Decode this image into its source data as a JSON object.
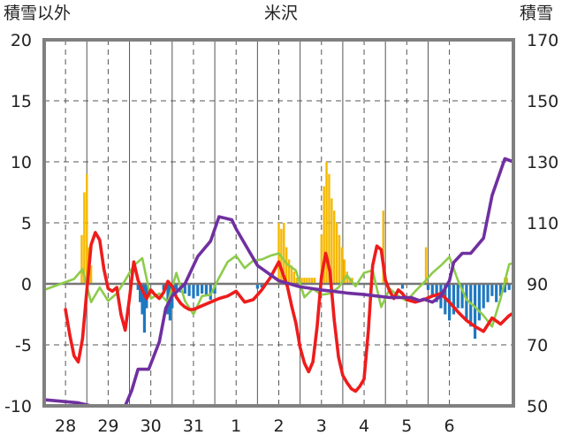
{
  "chart_data": {
    "type": "line",
    "title": "米沢",
    "left_axis_label": "積雪以外",
    "right_axis_label": "積雪",
    "left_ylim": [
      -10,
      20
    ],
    "left_ticks": [
      "20",
      "15",
      "10",
      "5",
      "0",
      "-5",
      "-10"
    ],
    "left_tick_values": [
      20,
      15,
      10,
      5,
      0,
      -5,
      -10
    ],
    "right_ylim": [
      50,
      170
    ],
    "right_ticks": [
      "170",
      "150",
      "130",
      "110",
      "90",
      "70",
      "50"
    ],
    "right_tick_values": [
      170,
      150,
      130,
      110,
      90,
      70,
      50
    ],
    "categories": [
      "28",
      "29",
      "30",
      "31",
      "1",
      "2",
      "3",
      "4",
      "5",
      "6"
    ],
    "xlim": [
      -0.5,
      10.5
    ],
    "grid": true,
    "colors": {
      "precip": "#f5b800",
      "snow_change": "#1f78c0",
      "temperature": "#ee1c1c",
      "wind": "#8dcc4a",
      "snow_depth": "#7030a0",
      "frame": "#808080",
      "grid": "#555555"
    },
    "series": [
      {
        "key": "temperature",
        "axis": "left",
        "x": [
          0,
          0.1,
          0.2,
          0.3,
          0.4,
          0.5,
          0.6,
          0.7,
          0.8,
          0.9,
          1.0,
          1.1,
          1.2,
          1.3,
          1.4,
          1.5,
          1.6,
          1.7,
          1.8,
          1.9,
          2.0,
          2.1,
          2.2,
          2.3,
          2.4,
          2.5,
          2.6,
          2.7,
          2.8,
          2.9,
          3.0,
          3.2,
          3.4,
          3.6,
          3.8,
          4.0,
          4.2,
          4.4,
          4.6,
          4.8,
          5.0,
          5.1,
          5.2,
          5.3,
          5.4,
          5.5,
          5.6,
          5.7,
          5.8,
          5.9,
          6.0,
          6.1,
          6.2,
          6.3,
          6.4,
          6.5,
          6.6,
          6.7,
          6.8,
          6.9,
          7.0,
          7.1,
          7.2,
          7.3,
          7.4,
          7.5,
          7.6,
          7.7,
          7.8,
          7.9,
          8.0,
          8.2,
          8.4,
          8.6,
          8.8,
          9.0,
          9.2,
          9.4,
          9.6,
          9.8,
          10.0,
          10.2,
          10.4,
          10.5
        ],
        "y": [
          -2.1,
          -4.2,
          -5.9,
          -6.4,
          -4.5,
          -0.5,
          3.2,
          4.2,
          3.6,
          1.2,
          -0.4,
          -0.6,
          -0.3,
          -2.5,
          -3.8,
          -1.2,
          1.8,
          0.3,
          -0.5,
          -1.2,
          -0.5,
          -0.9,
          -1.2,
          -0.7,
          0.2,
          -0.2,
          -1.1,
          -1.6,
          -1.9,
          -2.1,
          -2.1,
          -1.8,
          -1.5,
          -1.2,
          -1.0,
          -0.6,
          -1.5,
          -1.3,
          -0.5,
          0.5,
          1.8,
          0.8,
          -0.2,
          -1.8,
          -3.2,
          -5.2,
          -6.5,
          -7.2,
          -6.4,
          -3.5,
          0.6,
          2.5,
          1.0,
          -3.0,
          -6.0,
          -7.5,
          -8.1,
          -8.6,
          -8.8,
          -8.4,
          -7.8,
          -3.8,
          1.5,
          3.1,
          2.8,
          0.3,
          -0.6,
          -1.2,
          -0.5,
          -0.8,
          -1.3,
          -1.5,
          -1.3,
          -1.0,
          -0.8,
          -1.5,
          -2.3,
          -3.0,
          -3.5,
          -3.9,
          -2.8,
          -3.3,
          -2.6,
          -2.4
        ]
      },
      {
        "key": "wind",
        "axis": "left",
        "x": [
          -0.5,
          0.2,
          0.4,
          0.6,
          0.8,
          1.0,
          1.2,
          1.4,
          1.6,
          1.8,
          2.0,
          2.2,
          2.4,
          2.6,
          2.8,
          3.0,
          3.2,
          3.4,
          3.6,
          3.8,
          4.0,
          4.2,
          4.4,
          4.6,
          4.8,
          5.0,
          5.2,
          5.4,
          5.6,
          5.8,
          6.0,
          6.2,
          6.4,
          6.6,
          6.8,
          7.0,
          7.2,
          7.4,
          7.6,
          7.8,
          8.0,
          8.2,
          8.4,
          8.6,
          8.8,
          9.0,
          9.2,
          9.4,
          9.6,
          9.8,
          10.0,
          10.2,
          10.4,
          10.5
        ],
        "y": [
          -0.5,
          0.4,
          1.2,
          -1.5,
          -0.3,
          -1.4,
          -0.8,
          0.3,
          1.5,
          2.1,
          -1.2,
          -0.8,
          -1.5,
          0.9,
          -1.4,
          -2.5,
          -1.0,
          -0.9,
          0.5,
          1.8,
          2.3,
          1.3,
          1.9,
          2.0,
          2.3,
          2.5,
          1.6,
          1.1,
          -1.1,
          -0.4,
          -0.9,
          -0.8,
          -0.3,
          0.7,
          -0.2,
          0.9,
          1.1,
          -1.9,
          -0.4,
          -1.0,
          -1.4,
          -0.6,
          0.1,
          0.9,
          1.5,
          2.2,
          0.3,
          -1.3,
          -1.9,
          -2.6,
          -3.5,
          -1.2,
          1.6,
          1.7
        ]
      },
      {
        "key": "snow_depth",
        "axis": "right",
        "x": [
          -0.5,
          0.3,
          0.6,
          1.0,
          1.4,
          1.55,
          1.7,
          1.95,
          2.2,
          2.35,
          2.5,
          2.8,
          3.1,
          3.4,
          3.6,
          3.9,
          4.0,
          4.25,
          4.5,
          5.0,
          5.5,
          6.0,
          6.3,
          6.6,
          7.0,
          7.3,
          7.6,
          7.9,
          8.1,
          8.3,
          8.4,
          8.6,
          8.8,
          9.0,
          9.1,
          9.3,
          9.5,
          9.8,
          10.0,
          10.3,
          10.5
        ],
        "y": [
          52,
          51,
          50,
          50,
          50,
          55,
          62,
          62,
          71,
          82,
          86,
          90,
          99,
          104,
          112,
          111,
          108,
          102,
          96,
          91,
          89,
          88,
          87.5,
          87,
          86.5,
          86,
          85.5,
          85.5,
          85.5,
          84.5,
          85,
          84,
          86,
          91,
          97,
          100,
          100,
          105,
          119,
          131,
          130
        ]
      }
    ],
    "bar_series": [
      {
        "key": "precip",
        "axis": "left",
        "x": [
          0.38,
          0.44,
          0.5,
          0.55,
          0.6,
          5.0,
          5.06,
          5.12,
          5.18,
          5.24,
          5.3,
          5.36,
          5.42,
          5.48,
          5.54,
          5.6,
          5.66,
          5.72,
          5.78,
          5.84,
          6.0,
          6.06,
          6.12,
          6.18,
          6.24,
          6.3,
          6.36,
          6.42,
          6.48,
          6.54,
          6.6,
          6.66,
          6.72,
          7.45,
          8.45,
          10.3,
          10.35
        ],
        "values": [
          4.0,
          7.5,
          9.0,
          3.0,
          1.5,
          5.0,
          4.5,
          5.0,
          3.0,
          2.0,
          1.5,
          1.0,
          0.5,
          0.5,
          0.5,
          0.5,
          0.5,
          0.5,
          0.5,
          0.5,
          4.0,
          8.0,
          10.0,
          9.0,
          7.0,
          6.0,
          5.0,
          4.0,
          3.0,
          2.0,
          1.0,
          0.5,
          0.5,
          6.0,
          3.0,
          0.5,
          0.5
        ]
      },
      {
        "key": "snow_change",
        "axis": "left",
        "x": [
          1.7,
          1.75,
          1.8,
          1.85,
          1.9,
          2.3,
          2.4,
          2.45,
          2.5,
          2.55,
          2.6,
          2.7,
          2.8,
          2.9,
          3.0,
          3.1,
          3.2,
          3.3,
          3.4,
          3.5,
          4.5,
          4.6,
          7.9,
          8.5,
          8.6,
          8.7,
          8.8,
          8.9,
          9.0,
          9.1,
          9.2,
          9.3,
          9.4,
          9.5,
          9.6,
          9.7,
          9.8,
          9.9,
          10.0,
          10.1,
          10.2,
          10.3,
          10.4
        ],
        "values": [
          -0.5,
          -1.5,
          -2.5,
          -4.0,
          -2.0,
          -0.5,
          -2.5,
          -3.0,
          -2.0,
          -1.0,
          -0.5,
          -0.7,
          -0.8,
          -1.0,
          -1.2,
          -1.0,
          -0.8,
          -1.0,
          -1.3,
          -0.8,
          -0.4,
          -0.3,
          -0.4,
          -0.5,
          -1.0,
          -1.5,
          -2.0,
          -2.5,
          -3.0,
          -2.5,
          -2.0,
          -2.0,
          -3.0,
          -3.5,
          -4.5,
          -3.0,
          -2.0,
          -1.5,
          -1.0,
          -1.5,
          -1.0,
          -0.7,
          -0.5
        ]
      }
    ]
  }
}
